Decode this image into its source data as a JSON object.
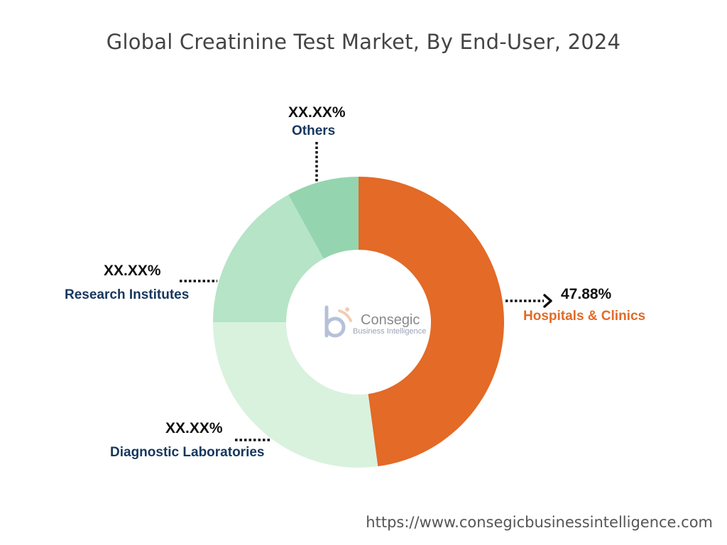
{
  "chart_data": {
    "type": "pie",
    "variant": "donut",
    "title": "Global Creatinine Test Market, By End-User, 2024",
    "categories": [
      "Hospitals & Clinics",
      "Diagnostic Laboratories",
      "Research Institutes",
      "Others"
    ],
    "values": [
      0.4788,
      0.2712,
      0.17,
      0.08
    ],
    "value_labels": [
      "47.88%",
      "XX.XX%",
      "XX.XX%",
      "XX.XX%"
    ],
    "colors": [
      "#e36a27",
      "#d9f2de",
      "#b5e4c6",
      "#94d5b0"
    ],
    "label_colors": [
      "#e36a27",
      "#17375e",
      "#17375e",
      "#17375e"
    ],
    "start_angle_deg": 0,
    "direction": "clockwise"
  },
  "watermark": {
    "logo_letters": "cb",
    "name": "Consegic",
    "subtitle": "Business Intelligence"
  },
  "footer": {
    "url": "https://www.consegicbusinessintelligence.com"
  }
}
